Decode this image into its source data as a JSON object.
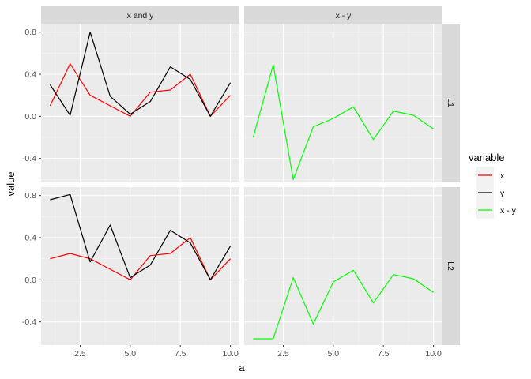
{
  "chart_data": {
    "type": "line",
    "xlabel": "a",
    "ylabel": "value",
    "xlim": [
      0.55,
      10.45
    ],
    "ylim": [
      -0.62,
      0.88
    ],
    "x_ticks": [
      2.5,
      5.0,
      7.5,
      10.0
    ],
    "x_tick_labels": [
      "2.5",
      "5.0",
      "7.5",
      "10.0"
    ],
    "y_ticks": [
      -0.4,
      0.0,
      0.4,
      0.8
    ],
    "y_tick_labels": [
      "-0.4",
      "0.0",
      "0.4",
      "0.8"
    ],
    "grid": true,
    "legend": {
      "title": "variable",
      "placement": "right",
      "entries": [
        {
          "label": "x",
          "color": "#ff0000"
        },
        {
          "label": "y",
          "color": "#000000"
        },
        {
          "label": "x - y",
          "color": "#00ff00"
        }
      ]
    },
    "facet_columns": [
      "x and y",
      "x - y"
    ],
    "facet_rows": [
      "L1",
      "L2"
    ],
    "x": [
      1,
      2,
      3,
      4,
      5,
      6,
      7,
      8,
      9,
      10
    ],
    "panels": [
      {
        "row": "L1",
        "column": "x and y",
        "series": [
          {
            "name": "x",
            "color": "#ff0000",
            "values": [
              0.1,
              0.5,
              0.2,
              0.1,
              0.0,
              0.23,
              0.25,
              0.4,
              0.0,
              0.2
            ]
          },
          {
            "name": "y",
            "color": "#000000",
            "values": [
              0.3,
              0.01,
              0.8,
              0.19,
              0.02,
              0.14,
              0.47,
              0.35,
              0.0,
              0.32
            ]
          }
        ]
      },
      {
        "row": "L1",
        "column": "x - y",
        "series": [
          {
            "name": "x - y",
            "color": "#00ff00",
            "values": [
              -0.2,
              0.49,
              -0.6,
              -0.1,
              -0.02,
              0.09,
              -0.22,
              0.05,
              0.01,
              -0.12
            ]
          }
        ]
      },
      {
        "row": "L2",
        "column": "x and y",
        "series": [
          {
            "name": "x",
            "color": "#ff0000",
            "values": [
              0.2,
              0.25,
              0.2,
              0.1,
              0.0,
              0.23,
              0.25,
              0.4,
              0.0,
              0.2
            ]
          },
          {
            "name": "y",
            "color": "#000000",
            "values": [
              0.76,
              0.81,
              0.17,
              0.52,
              0.02,
              0.14,
              0.47,
              0.35,
              0.0,
              0.32
            ]
          }
        ]
      },
      {
        "row": "L2",
        "column": "x - y",
        "series": [
          {
            "name": "x - y",
            "color": "#00ff00",
            "values": [
              -0.56,
              -0.56,
              0.02,
              -0.42,
              -0.02,
              0.09,
              -0.22,
              0.05,
              0.01,
              -0.12
            ]
          }
        ]
      }
    ]
  }
}
